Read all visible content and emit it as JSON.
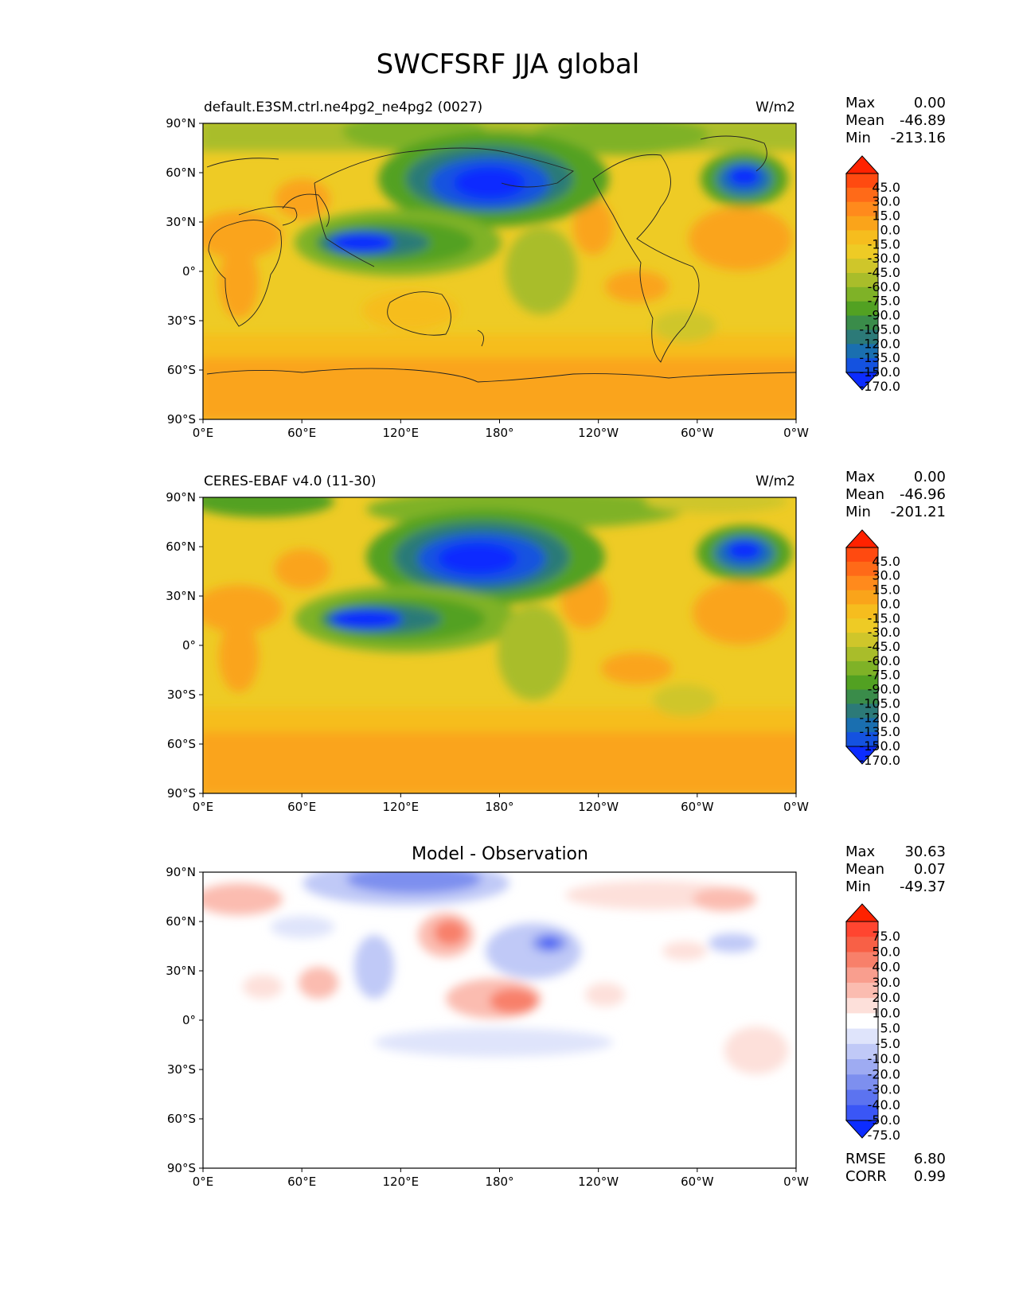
{
  "figure_title": "SWCFSRF JJA global",
  "lat_ticks": [
    "90°N",
    "60°N",
    "30°N",
    "0°",
    "30°S",
    "60°S",
    "90°S"
  ],
  "lon_ticks": [
    "0°E",
    "60°E",
    "120°E",
    "180°",
    "120°W",
    "60°W",
    "0°W"
  ],
  "panels": [
    {
      "id": "model",
      "title_left": "default.E3SM.ctrl.ne4pg2_ne4pg2 (0027)",
      "title_center": "",
      "units": "W/m2",
      "stats": [
        {
          "label": "Max",
          "value": "0.00"
        },
        {
          "label": "Mean",
          "value": "-46.89"
        },
        {
          "label": "Min",
          "value": "-213.16"
        }
      ],
      "colorbar_labels": [
        "45.0",
        "30.0",
        "15.0",
        "0.0",
        "-15.0",
        "-30.0",
        "-45.0",
        "-60.0",
        "-75.0",
        "-90.0",
        "-105.0",
        "-120.0",
        "-135.0",
        "-150.0",
        "-170.0"
      ],
      "colorbar_colors": [
        "#ff2200",
        "#ff4a10",
        "#ff6a18",
        "#ff8a1c",
        "#faa41a",
        "#f6bd1e",
        "#eecb25",
        "#cfc62a",
        "#a9bd2a",
        "#7fb227",
        "#52a122",
        "#3a8c4a",
        "#2c7a78",
        "#1a6fb0",
        "#1452e0",
        "#0c2cff"
      ],
      "regions": [
        {
          "name": "north-pacific-minimum",
          "lon": 177,
          "lat": 52,
          "value": -170
        },
        {
          "name": "north-atlantic-minimum",
          "lon": 327,
          "lat": 55,
          "value": -170
        },
        {
          "name": "west-pacific-warm-pool",
          "lon": 125,
          "lat": 15,
          "value": -150
        },
        {
          "name": "arctic",
          "lon": 150,
          "lat": 82,
          "value": -90
        },
        {
          "name": "southern-ocean",
          "lon": 180,
          "lat": -70,
          "value": -15
        }
      ]
    },
    {
      "id": "obs",
      "title_left": "CERES-EBAF v4.0 (11-30)",
      "title_center": "",
      "units": "W/m2",
      "stats": [
        {
          "label": "Max",
          "value": "0.00"
        },
        {
          "label": "Mean",
          "value": "-46.96"
        },
        {
          "label": "Min",
          "value": "-201.21"
        }
      ],
      "colorbar_labels": [
        "45.0",
        "30.0",
        "15.0",
        "0.0",
        "-15.0",
        "-30.0",
        "-45.0",
        "-60.0",
        "-75.0",
        "-90.0",
        "-105.0",
        "-120.0",
        "-135.0",
        "-150.0",
        "-170.0"
      ],
      "colorbar_colors": [
        "#ff2200",
        "#ff4a10",
        "#ff6a18",
        "#ff8a1c",
        "#faa41a",
        "#f6bd1e",
        "#eecb25",
        "#cfc62a",
        "#a9bd2a",
        "#7fb227",
        "#52a122",
        "#3a8c4a",
        "#2c7a78",
        "#1a6fb0",
        "#1452e0",
        "#0c2cff"
      ],
      "regions": [
        {
          "name": "north-pacific-minimum",
          "lon": 170,
          "lat": 52,
          "value": -170
        },
        {
          "name": "north-atlantic-minimum",
          "lon": 330,
          "lat": 58,
          "value": -170
        },
        {
          "name": "west-pacific-warm-pool",
          "lon": 125,
          "lat": 15,
          "value": -150
        },
        {
          "name": "arctic",
          "lon": 150,
          "lat": 82,
          "value": -75
        },
        {
          "name": "southern-ocean",
          "lon": 180,
          "lat": -70,
          "value": -15
        }
      ]
    },
    {
      "id": "diff",
      "title_left": "",
      "title_center": "Model - Observation",
      "units": "",
      "stats": [
        {
          "label": "Max",
          "value": "30.63"
        },
        {
          "label": "Mean",
          "value": "0.07"
        },
        {
          "label": "Min",
          "value": "-49.37"
        }
      ],
      "colorbar_labels": [
        "75.0",
        "50.0",
        "40.0",
        "30.0",
        "20.0",
        "10.0",
        "5.0",
        "-5.0",
        "-10.0",
        "-20.0",
        "-30.0",
        "-40.0",
        "-50.0",
        "-75.0"
      ],
      "colorbar_colors": [
        "#ff2200",
        "#ff4530",
        "#f86046",
        "#f8806a",
        "#f99e8e",
        "#fbbcb0",
        "#fde0da",
        "#ffffff",
        "#dfe4fb",
        "#c0c9f7",
        "#9eabf2",
        "#7d8fef",
        "#5c73f0",
        "#3a56f6",
        "#0c2cff"
      ],
      "extra_stats": [
        {
          "label": "RMSE",
          "value": "6.80"
        },
        {
          "label": "CORR",
          "value": "0.99"
        }
      ],
      "regions": [
        {
          "name": "kamchatka-positive",
          "lon": 148,
          "lat": 58,
          "value": 20
        },
        {
          "name": "pacific-negative",
          "lon": 207,
          "lat": 38,
          "value": -40
        },
        {
          "name": "arctic-negative",
          "lon": 120,
          "lat": 85,
          "value": -20
        },
        {
          "name": "tropical-pacific-positive",
          "lon": 185,
          "lat": 12,
          "value": 20
        },
        {
          "name": "canada-positive",
          "lon": 265,
          "lat": 72,
          "value": 10
        }
      ]
    }
  ]
}
